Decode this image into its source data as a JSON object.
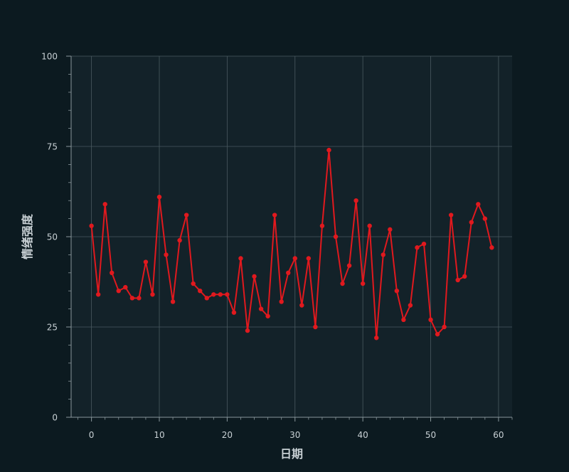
{
  "chart_data": {
    "type": "line",
    "title": "",
    "xlabel": "日期",
    "ylabel": "情绪强度",
    "xlim": [
      -3,
      62
    ],
    "ylim": [
      0,
      100
    ],
    "x_ticks": [
      0,
      10,
      20,
      30,
      40,
      50,
      60
    ],
    "y_ticks": [
      0,
      25,
      50,
      75,
      100
    ],
    "grid": true,
    "colors": {
      "background": "#0c1a20",
      "plot_background": "#132229",
      "grid": "#4a5a60",
      "axis": "#8a979c",
      "text": "#c8d0d4",
      "series": "#e0191e"
    },
    "series": [
      {
        "values": [
          53,
          34,
          59,
          40,
          35,
          36,
          33,
          33,
          43,
          34,
          61,
          45,
          32,
          49,
          56,
          37,
          35,
          33,
          34,
          34,
          34,
          29,
          44,
          24,
          39,
          30,
          28,
          56,
          32,
          40,
          44,
          31,
          44,
          25,
          53,
          74,
          50,
          37,
          42,
          60,
          37,
          53,
          22,
          45,
          52,
          35,
          27,
          31,
          47,
          48,
          27,
          23,
          25,
          56,
          38,
          39,
          54,
          59,
          55,
          47
        ]
      }
    ]
  }
}
